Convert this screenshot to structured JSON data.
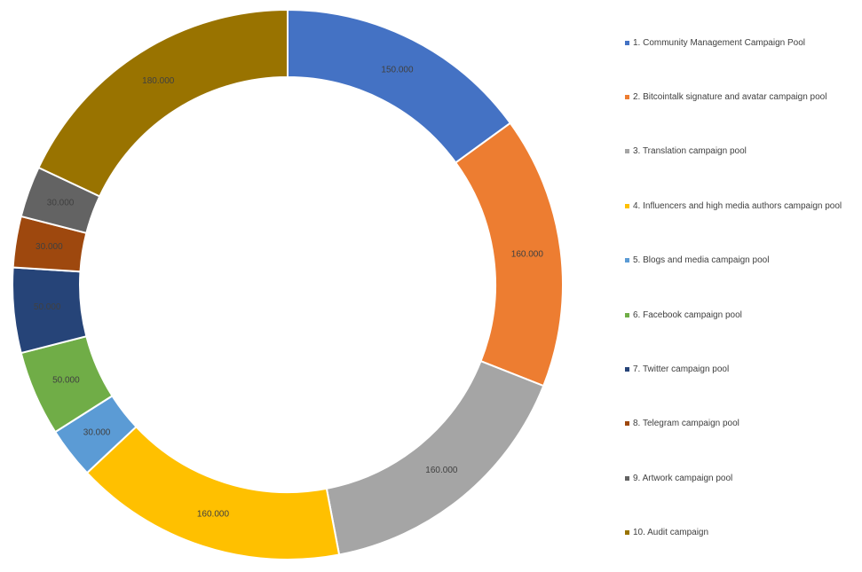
{
  "chart_data": {
    "type": "pie",
    "variant": "doughnut",
    "categories": [
      "1. Community Management Campaign Pool",
      "2. Bitcointalk signature and avatar campaign pool",
      "3. Translation campaign pool",
      "4. Influencers and high media authors campaign pool",
      "5. Blogs and media campaign pool",
      "6. Facebook campaign pool",
      "7. Twitter campaign pool",
      "8. Telegram campaign pool",
      "9. Artwork campaign pool",
      "10. Audit campaign"
    ],
    "values": [
      150000,
      160000,
      160000,
      160000,
      30000,
      50000,
      50000,
      30000,
      30000,
      180000
    ],
    "data_labels": [
      "150.000",
      "160.000",
      "160.000",
      "160.000",
      "30.000",
      "50.000",
      "50.000",
      "30.000",
      "30.000",
      "180.000"
    ],
    "colors": [
      "#4472C4",
      "#ED7D31",
      "#A5A5A5",
      "#FFC000",
      "#5B9BD5",
      "#70AD47",
      "#264478",
      "#9E480E",
      "#636363",
      "#997300"
    ],
    "legend_position": "right",
    "start_angle": "top, clockwise"
  }
}
